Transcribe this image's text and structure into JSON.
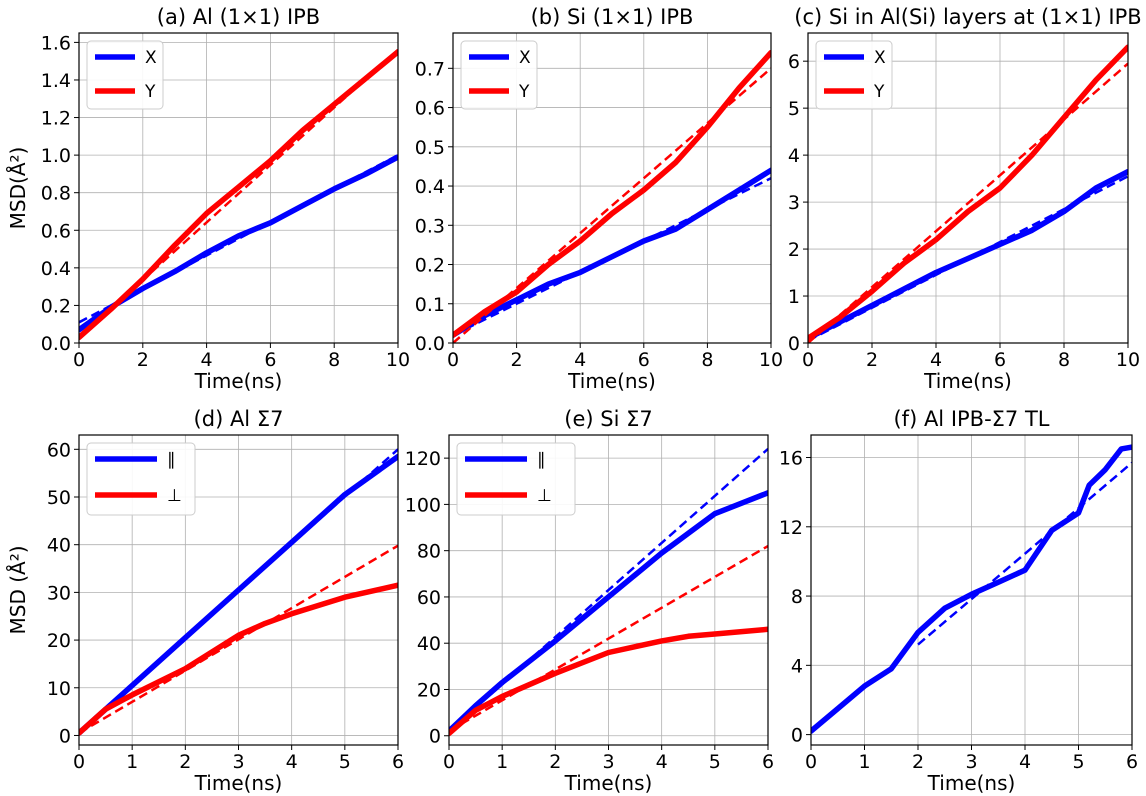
{
  "colors": {
    "X": "#0000ff",
    "Y": "#ff0000"
  },
  "chart_data": [
    {
      "type": "line",
      "title": "(a) Al (1×1) IPB",
      "xlabel": "Time(ns)",
      "ylabel": "MSD(Å²)",
      "xlim": [
        0,
        10
      ],
      "ylim": [
        0,
        1.65
      ],
      "xticks": [
        0,
        2,
        4,
        6,
        8,
        10
      ],
      "xtick_labels": [
        "0",
        "2",
        "4",
        "6",
        "8",
        "10"
      ],
      "yticks": [
        0,
        0.2,
        0.4,
        0.6,
        0.8,
        1.0,
        1.2,
        1.4,
        1.6
      ],
      "ytick_labels": [
        "0.0",
        "0.2",
        "0.4",
        "0.6",
        "0.8",
        "1.0",
        "1.2",
        "1.4",
        "1.6"
      ],
      "grid": true,
      "legend_position": "top-left",
      "series": [
        {
          "name": "X",
          "color": "#0000ff",
          "x": [
            0,
            1,
            2,
            3,
            4,
            5,
            6,
            7,
            8,
            9,
            10
          ],
          "y": [
            0.07,
            0.19,
            0.29,
            0.38,
            0.48,
            0.57,
            0.64,
            0.73,
            0.82,
            0.9,
            0.99
          ],
          "fit": [
            [
              0,
              0.11
            ],
            [
              10,
              1.0
            ]
          ]
        },
        {
          "name": "Y",
          "color": "#ff0000",
          "x": [
            0,
            1,
            2,
            3,
            4,
            5,
            6,
            7,
            8,
            9,
            10
          ],
          "y": [
            0.03,
            0.18,
            0.34,
            0.52,
            0.69,
            0.83,
            0.97,
            1.13,
            1.27,
            1.41,
            1.55
          ],
          "fit": [
            [
              0,
              0.03
            ],
            [
              10,
              1.56
            ]
          ]
        }
      ]
    },
    {
      "type": "line",
      "title": "(b) Si (1×1) IPB",
      "xlabel": "Time(ns)",
      "ylabel": "",
      "xlim": [
        0,
        10
      ],
      "ylim": [
        0,
        0.79
      ],
      "xticks": [
        0,
        2,
        4,
        6,
        8,
        10
      ],
      "xtick_labels": [
        "0",
        "2",
        "4",
        "6",
        "8",
        "10"
      ],
      "yticks": [
        0,
        0.1,
        0.2,
        0.3,
        0.4,
        0.5,
        0.6,
        0.7
      ],
      "ytick_labels": [
        "0.0",
        "0.1",
        "0.2",
        "0.3",
        "0.4",
        "0.5",
        "0.6",
        "0.7"
      ],
      "grid": true,
      "legend_position": "top-left",
      "series": [
        {
          "name": "X",
          "color": "#0000ff",
          "x": [
            0,
            1,
            2,
            3,
            4,
            5,
            6,
            7,
            8,
            9,
            10
          ],
          "y": [
            0.02,
            0.07,
            0.11,
            0.15,
            0.18,
            0.22,
            0.26,
            0.29,
            0.34,
            0.39,
            0.44
          ],
          "fit": [
            [
              0,
              0.02
            ],
            [
              10,
              0.42
            ]
          ]
        },
        {
          "name": "Y",
          "color": "#ff0000",
          "x": [
            0,
            1,
            2,
            3,
            4,
            5,
            6,
            7,
            8,
            9,
            10
          ],
          "y": [
            0.02,
            0.08,
            0.13,
            0.2,
            0.26,
            0.33,
            0.39,
            0.46,
            0.55,
            0.65,
            0.74
          ],
          "fit": [
            [
              0,
              0.0
            ],
            [
              10,
              0.7
            ]
          ]
        }
      ]
    },
    {
      "type": "line",
      "title": "(c) Si in Al(Si) layers at (1×1) IPB",
      "xlabel": "Time(ns)",
      "ylabel": "",
      "xlim": [
        0,
        10
      ],
      "ylim": [
        0,
        6.6
      ],
      "xticks": [
        0,
        2,
        4,
        6,
        8,
        10
      ],
      "xtick_labels": [
        "0",
        "2",
        "4",
        "6",
        "8",
        "10"
      ],
      "yticks": [
        0,
        1,
        2,
        3,
        4,
        5,
        6
      ],
      "ytick_labels": [
        "0",
        "1",
        "2",
        "3",
        "4",
        "5",
        "6"
      ],
      "grid": true,
      "legend_position": "top-left",
      "series": [
        {
          "name": "X",
          "color": "#0000ff",
          "x": [
            0,
            1,
            2,
            3,
            4,
            5,
            6,
            7,
            8,
            9,
            10
          ],
          "y": [
            0.1,
            0.45,
            0.8,
            1.15,
            1.5,
            1.8,
            2.1,
            2.4,
            2.8,
            3.3,
            3.65
          ],
          "fit": [
            [
              0,
              0.05
            ],
            [
              10,
              3.55
            ]
          ]
        },
        {
          "name": "Y",
          "color": "#ff0000",
          "x": [
            0,
            1,
            2,
            3,
            4,
            5,
            6,
            7,
            8,
            9,
            10
          ],
          "y": [
            0.1,
            0.55,
            1.1,
            1.7,
            2.2,
            2.8,
            3.3,
            4.0,
            4.8,
            5.6,
            6.3
          ],
          "fit": [
            [
              0,
              0.0
            ],
            [
              10,
              5.95
            ]
          ]
        }
      ]
    },
    {
      "type": "line",
      "title": "(d) Al Σ7",
      "xlabel": "Time(ns)",
      "ylabel": "MSD (Å²)",
      "xlim": [
        0,
        6
      ],
      "ylim": [
        -2,
        63
      ],
      "xticks": [
        0,
        1,
        2,
        3,
        4,
        5,
        6
      ],
      "xtick_labels": [
        "0",
        "1",
        "2",
        "3",
        "4",
        "5",
        "6"
      ],
      "yticks": [
        0,
        10,
        20,
        30,
        40,
        50,
        60
      ],
      "ytick_labels": [
        "0",
        "10",
        "20",
        "30",
        "40",
        "50",
        "60"
      ],
      "grid": true,
      "legend_position": "top-left",
      "series": [
        {
          "name": "∥",
          "color": "#0000ff",
          "x": [
            0,
            1,
            2,
            3,
            4,
            5,
            6
          ],
          "y": [
            0.5,
            10.5,
            20.5,
            30.5,
            40.5,
            50.5,
            58.5
          ],
          "fit": [
            [
              0,
              0.5
            ],
            [
              6,
              60
            ]
          ]
        },
        {
          "name": "⊥",
          "color": "#ff0000",
          "x": [
            0,
            0.5,
            1,
            2,
            3,
            3.5,
            4,
            5,
            6
          ],
          "y": [
            0.5,
            5.5,
            8.5,
            14,
            21,
            23.5,
            25.5,
            29,
            31.5
          ],
          "fit": [
            [
              0,
              0.5
            ],
            [
              6,
              39.8
            ]
          ]
        }
      ]
    },
    {
      "type": "line",
      "title": "(e) Si Σ7",
      "xlabel": "Time(ns)",
      "ylabel": "",
      "xlim": [
        0,
        6
      ],
      "ylim": [
        -4,
        130
      ],
      "xticks": [
        0,
        1,
        2,
        3,
        4,
        5,
        6
      ],
      "xtick_labels": [
        "0",
        "1",
        "2",
        "3",
        "4",
        "5",
        "6"
      ],
      "yticks": [
        0,
        20,
        40,
        60,
        80,
        100,
        120
      ],
      "ytick_labels": [
        "0",
        "20",
        "40",
        "60",
        "80",
        "100",
        "120"
      ],
      "grid": true,
      "legend_position": "top-left",
      "series": [
        {
          "name": "∥",
          "color": "#0000ff",
          "x": [
            0,
            0.5,
            1,
            2,
            3,
            4,
            5,
            6
          ],
          "y": [
            2,
            13,
            23,
            41,
            60,
            79,
            96,
            105
          ],
          "fit": [
            [
              0,
              2
            ],
            [
              6,
              124
            ]
          ]
        },
        {
          "name": "⊥",
          "color": "#ff0000",
          "x": [
            0,
            0.5,
            1,
            2,
            3,
            3.5,
            4,
            4.5,
            5,
            6
          ],
          "y": [
            1,
            11,
            17,
            27,
            36,
            38.5,
            41,
            43,
            44,
            46
          ],
          "fit": [
            [
              0,
              2
            ],
            [
              6,
              82
            ]
          ]
        }
      ]
    },
    {
      "type": "line",
      "title": "(f) Al IPB-Σ7 TL",
      "xlabel": "Time(ns)",
      "ylabel": "",
      "xlim": [
        0,
        6
      ],
      "ylim": [
        -0.6,
        17.3
      ],
      "xticks": [
        0,
        1,
        2,
        3,
        4,
        5,
        6
      ],
      "xtick_labels": [
        "0",
        "1",
        "2",
        "3",
        "4",
        "5",
        "6"
      ],
      "yticks": [
        0,
        4,
        8,
        12,
        16
      ],
      "ytick_labels": [
        "0",
        "4",
        "8",
        "12",
        "16"
      ],
      "grid": true,
      "legend_position": "none",
      "series": [
        {
          "name": "",
          "color": "#0000ff",
          "x": [
            0,
            0.5,
            1,
            1.5,
            2,
            2.5,
            3,
            3.5,
            4,
            4.5,
            5,
            5.2,
            5.5,
            5.8,
            6
          ],
          "y": [
            0.2,
            1.5,
            2.8,
            3.8,
            5.9,
            7.3,
            8.1,
            8.8,
            9.5,
            11.8,
            12.8,
            14.4,
            15.3,
            16.5,
            16.6
          ],
          "fit": [
            [
              2,
              5.2
            ],
            [
              6,
              15.7
            ]
          ]
        }
      ]
    }
  ]
}
